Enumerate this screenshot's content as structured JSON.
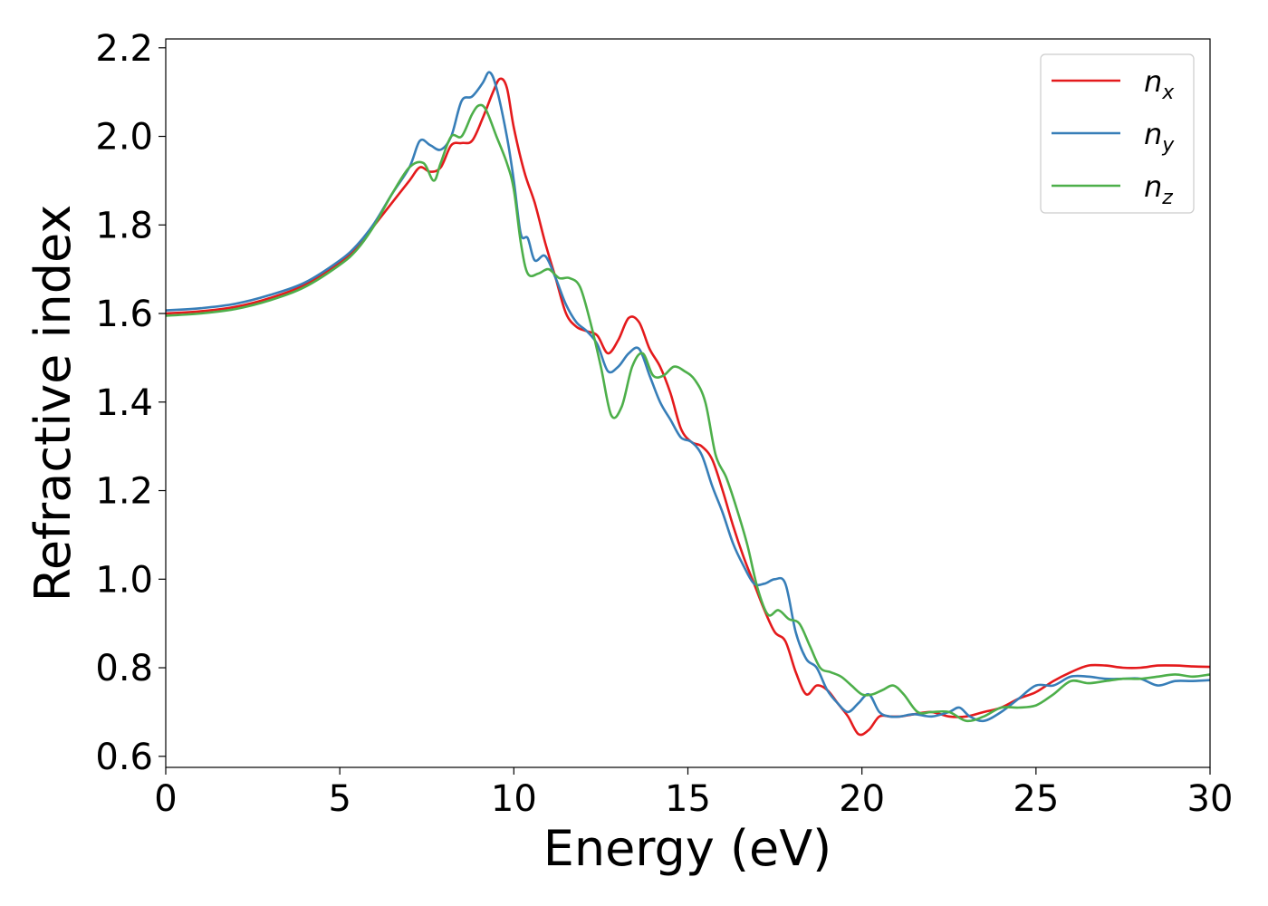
{
  "chart_data": {
    "type": "line",
    "xlabel": "Energy (eV)",
    "ylabel": "Refractive index",
    "xlim": [
      0,
      30
    ],
    "ylim": [
      0.575,
      2.22
    ],
    "xticks": [
      "0",
      "5",
      "10",
      "15",
      "20",
      "25",
      "30"
    ],
    "yticks": [
      "0.6",
      "0.8",
      "1.0",
      "1.2",
      "1.4",
      "1.6",
      "1.8",
      "2.0",
      "2.2"
    ],
    "legend_position": "top-right",
    "grid": false,
    "series": [
      {
        "name": "n",
        "subscript": "x",
        "color": "#e41a1c",
        "x": [
          0,
          1,
          2,
          3,
          4,
          5,
          5.5,
          6,
          6.5,
          7,
          7.3,
          7.6,
          7.9,
          8.2,
          8.5,
          8.8,
          9.1,
          9.4,
          9.6,
          9.8,
          10,
          10.3,
          10.6,
          10.9,
          11.2,
          11.5,
          11.8,
          12.1,
          12.4,
          12.7,
          13,
          13.3,
          13.6,
          13.9,
          14.2,
          14.5,
          14.8,
          15.1,
          15.4,
          15.7,
          16,
          16.3,
          16.6,
          16.9,
          17.2,
          17.5,
          17.8,
          18.1,
          18.4,
          18.7,
          19,
          19.3,
          19.6,
          19.9,
          20.2,
          20.5,
          20.8,
          21.1,
          21.5,
          22,
          22.5,
          23,
          23.5,
          24,
          24.5,
          25,
          25.5,
          26,
          26.5,
          27,
          27.5,
          28,
          28.5,
          29,
          29.5,
          30
        ],
        "y": [
          1.6,
          1.605,
          1.615,
          1.635,
          1.665,
          1.715,
          1.75,
          1.8,
          1.85,
          1.9,
          1.93,
          1.92,
          1.93,
          1.98,
          1.985,
          1.99,
          2.04,
          2.1,
          2.13,
          2.11,
          2.02,
          1.92,
          1.85,
          1.76,
          1.68,
          1.6,
          1.57,
          1.56,
          1.55,
          1.51,
          1.54,
          1.59,
          1.58,
          1.52,
          1.48,
          1.42,
          1.34,
          1.31,
          1.3,
          1.27,
          1.2,
          1.12,
          1.05,
          0.99,
          0.93,
          0.88,
          0.86,
          0.79,
          0.74,
          0.76,
          0.75,
          0.72,
          0.69,
          0.65,
          0.66,
          0.69,
          0.69,
          0.69,
          0.695,
          0.7,
          0.69,
          0.69,
          0.7,
          0.71,
          0.73,
          0.745,
          0.77,
          0.79,
          0.805,
          0.805,
          0.8,
          0.8,
          0.805,
          0.805,
          0.803,
          0.802
        ]
      },
      {
        "name": "n",
        "subscript": "y",
        "color": "#377eb8",
        "x": [
          0,
          1,
          2,
          3,
          4,
          5,
          5.5,
          6,
          6.5,
          7,
          7.3,
          7.6,
          7.9,
          8.2,
          8.5,
          8.8,
          9.1,
          9.3,
          9.5,
          9.8,
          10,
          10.2,
          10.4,
          10.6,
          10.9,
          11.2,
          11.5,
          11.8,
          12.1,
          12.4,
          12.7,
          13,
          13.3,
          13.6,
          13.9,
          14.2,
          14.5,
          14.8,
          15.1,
          15.4,
          15.7,
          16,
          16.3,
          16.6,
          16.9,
          17.2,
          17.5,
          17.8,
          18.1,
          18.4,
          18.7,
          19,
          19.3,
          19.6,
          19.9,
          20.2,
          20.5,
          20.8,
          21.1,
          21.5,
          22,
          22.5,
          22.8,
          23.1,
          23.5,
          24,
          24.5,
          25,
          25.5,
          26,
          26.5,
          27,
          27.5,
          28,
          28.5,
          29,
          29.5,
          30
        ],
        "y": [
          1.607,
          1.612,
          1.622,
          1.642,
          1.67,
          1.72,
          1.755,
          1.805,
          1.87,
          1.93,
          1.99,
          1.98,
          1.97,
          2.0,
          2.08,
          2.09,
          2.12,
          2.145,
          2.11,
          2.0,
          1.9,
          1.78,
          1.77,
          1.72,
          1.73,
          1.68,
          1.62,
          1.58,
          1.56,
          1.53,
          1.47,
          1.48,
          1.51,
          1.52,
          1.46,
          1.4,
          1.36,
          1.32,
          1.31,
          1.28,
          1.21,
          1.15,
          1.08,
          1.03,
          0.99,
          0.99,
          1.0,
          0.99,
          0.88,
          0.82,
          0.8,
          0.75,
          0.72,
          0.7,
          0.72,
          0.74,
          0.7,
          0.69,
          0.69,
          0.695,
          0.69,
          0.7,
          0.71,
          0.69,
          0.68,
          0.7,
          0.73,
          0.76,
          0.76,
          0.78,
          0.78,
          0.775,
          0.775,
          0.775,
          0.76,
          0.77,
          0.77,
          0.772
        ]
      },
      {
        "name": "n",
        "subscript": "z",
        "color": "#4daf4a",
        "x": [
          0,
          1,
          2,
          3,
          4,
          5,
          5.5,
          6,
          6.5,
          7,
          7.4,
          7.7,
          7.9,
          8.2,
          8.5,
          8.8,
          9,
          9.2,
          9.5,
          9.8,
          10,
          10.2,
          10.4,
          10.7,
          11,
          11.3,
          11.6,
          11.9,
          12.2,
          12.5,
          12.8,
          13.1,
          13.4,
          13.7,
          14,
          14.3,
          14.6,
          14.9,
          15.2,
          15.5,
          15.8,
          16.1,
          16.4,
          16.7,
          17,
          17.3,
          17.6,
          17.9,
          18.2,
          18.5,
          18.8,
          19.1,
          19.4,
          19.7,
          20,
          20.3,
          20.6,
          20.9,
          21.2,
          21.6,
          22,
          22.5,
          23,
          23.5,
          24,
          24.5,
          25,
          25.5,
          26,
          26.5,
          27,
          27.5,
          28,
          28.5,
          29,
          29.5,
          30
        ],
        "y": [
          1.595,
          1.6,
          1.61,
          1.63,
          1.66,
          1.71,
          1.745,
          1.8,
          1.87,
          1.93,
          1.94,
          1.9,
          1.94,
          2.0,
          2.0,
          2.05,
          2.07,
          2.06,
          2.0,
          1.94,
          1.88,
          1.76,
          1.69,
          1.69,
          1.7,
          1.68,
          1.68,
          1.66,
          1.58,
          1.48,
          1.37,
          1.39,
          1.48,
          1.51,
          1.46,
          1.46,
          1.48,
          1.47,
          1.45,
          1.4,
          1.28,
          1.23,
          1.16,
          1.08,
          0.98,
          0.92,
          0.93,
          0.91,
          0.9,
          0.85,
          0.8,
          0.79,
          0.78,
          0.76,
          0.74,
          0.74,
          0.75,
          0.76,
          0.74,
          0.7,
          0.7,
          0.7,
          0.68,
          0.69,
          0.71,
          0.71,
          0.715,
          0.74,
          0.77,
          0.765,
          0.77,
          0.775,
          0.775,
          0.78,
          0.785,
          0.78,
          0.785
        ]
      }
    ]
  }
}
